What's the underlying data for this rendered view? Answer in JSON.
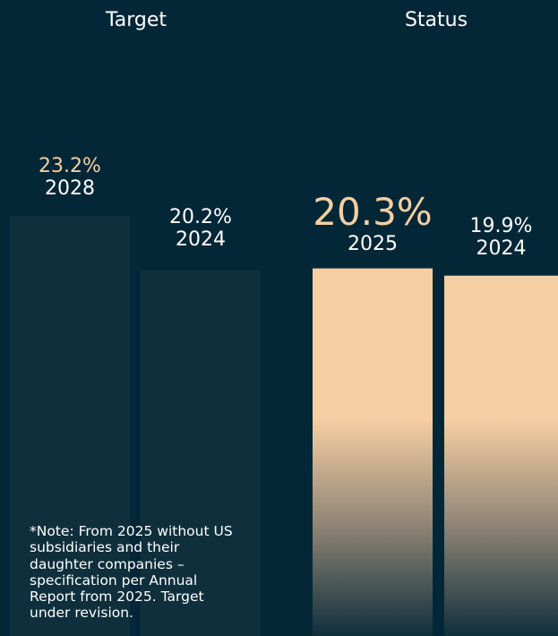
{
  "headings": {
    "target": "Target",
    "status": "Status"
  },
  "colors": {
    "background": "#042737",
    "target_bar": "#4d5753",
    "status_bar": "#f7cfa4",
    "status_highlight_text": "#f5cfa2"
  },
  "note": "*Note: From 2025 without US subsidiaries and their daughter companies – specification per Annual Report from 2025. Target under revision.",
  "chart_data": {
    "type": "bar",
    "groups": [
      {
        "name": "Target",
        "categories": [
          "2028",
          "2024"
        ],
        "values": [
          23.2,
          20.2
        ],
        "labels": [
          "23.2%",
          "20.2%"
        ]
      },
      {
        "name": "Status",
        "categories": [
          "2025",
          "2024"
        ],
        "values": [
          20.3,
          19.9
        ],
        "labels": [
          "20.3%",
          "19.9%"
        ]
      }
    ],
    "unit": "%",
    "grid": false,
    "legend": "none"
  }
}
